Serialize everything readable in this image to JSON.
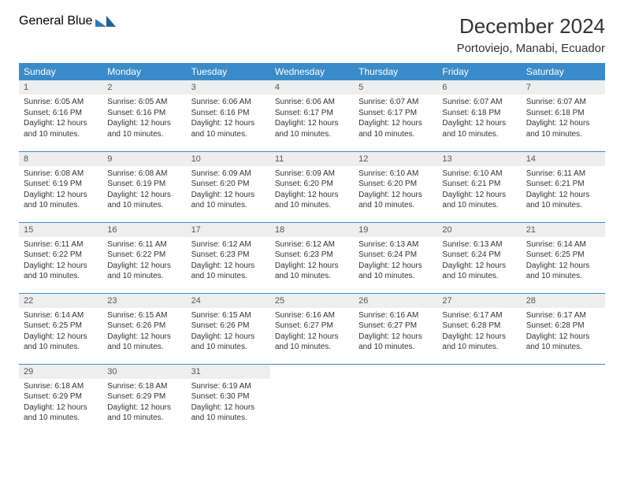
{
  "logo": {
    "line1": "General",
    "line2": "Blue"
  },
  "title": "December 2024",
  "location": "Portoviejo, Manabi, Ecuador",
  "colors": {
    "header_bg": "#3a8bc9",
    "header_fg": "#ffffff",
    "daynum_bg": "#eeeeee",
    "border": "#3a8bc9",
    "logo_gray": "#6c6c6c",
    "logo_blue": "#2b7bbf"
  },
  "weekdays": [
    "Sunday",
    "Monday",
    "Tuesday",
    "Wednesday",
    "Thursday",
    "Friday",
    "Saturday"
  ],
  "start_offset": 0,
  "days": [
    {
      "n": 1,
      "sunrise": "6:05 AM",
      "sunset": "6:16 PM",
      "daylight": "12 hours and 10 minutes."
    },
    {
      "n": 2,
      "sunrise": "6:05 AM",
      "sunset": "6:16 PM",
      "daylight": "12 hours and 10 minutes."
    },
    {
      "n": 3,
      "sunrise": "6:06 AM",
      "sunset": "6:16 PM",
      "daylight": "12 hours and 10 minutes."
    },
    {
      "n": 4,
      "sunrise": "6:06 AM",
      "sunset": "6:17 PM",
      "daylight": "12 hours and 10 minutes."
    },
    {
      "n": 5,
      "sunrise": "6:07 AM",
      "sunset": "6:17 PM",
      "daylight": "12 hours and 10 minutes."
    },
    {
      "n": 6,
      "sunrise": "6:07 AM",
      "sunset": "6:18 PM",
      "daylight": "12 hours and 10 minutes."
    },
    {
      "n": 7,
      "sunrise": "6:07 AM",
      "sunset": "6:18 PM",
      "daylight": "12 hours and 10 minutes."
    },
    {
      "n": 8,
      "sunrise": "6:08 AM",
      "sunset": "6:19 PM",
      "daylight": "12 hours and 10 minutes."
    },
    {
      "n": 9,
      "sunrise": "6:08 AM",
      "sunset": "6:19 PM",
      "daylight": "12 hours and 10 minutes."
    },
    {
      "n": 10,
      "sunrise": "6:09 AM",
      "sunset": "6:20 PM",
      "daylight": "12 hours and 10 minutes."
    },
    {
      "n": 11,
      "sunrise": "6:09 AM",
      "sunset": "6:20 PM",
      "daylight": "12 hours and 10 minutes."
    },
    {
      "n": 12,
      "sunrise": "6:10 AM",
      "sunset": "6:20 PM",
      "daylight": "12 hours and 10 minutes."
    },
    {
      "n": 13,
      "sunrise": "6:10 AM",
      "sunset": "6:21 PM",
      "daylight": "12 hours and 10 minutes."
    },
    {
      "n": 14,
      "sunrise": "6:11 AM",
      "sunset": "6:21 PM",
      "daylight": "12 hours and 10 minutes."
    },
    {
      "n": 15,
      "sunrise": "6:11 AM",
      "sunset": "6:22 PM",
      "daylight": "12 hours and 10 minutes."
    },
    {
      "n": 16,
      "sunrise": "6:11 AM",
      "sunset": "6:22 PM",
      "daylight": "12 hours and 10 minutes."
    },
    {
      "n": 17,
      "sunrise": "6:12 AM",
      "sunset": "6:23 PM",
      "daylight": "12 hours and 10 minutes."
    },
    {
      "n": 18,
      "sunrise": "6:12 AM",
      "sunset": "6:23 PM",
      "daylight": "12 hours and 10 minutes."
    },
    {
      "n": 19,
      "sunrise": "6:13 AM",
      "sunset": "6:24 PM",
      "daylight": "12 hours and 10 minutes."
    },
    {
      "n": 20,
      "sunrise": "6:13 AM",
      "sunset": "6:24 PM",
      "daylight": "12 hours and 10 minutes."
    },
    {
      "n": 21,
      "sunrise": "6:14 AM",
      "sunset": "6:25 PM",
      "daylight": "12 hours and 10 minutes."
    },
    {
      "n": 22,
      "sunrise": "6:14 AM",
      "sunset": "6:25 PM",
      "daylight": "12 hours and 10 minutes."
    },
    {
      "n": 23,
      "sunrise": "6:15 AM",
      "sunset": "6:26 PM",
      "daylight": "12 hours and 10 minutes."
    },
    {
      "n": 24,
      "sunrise": "6:15 AM",
      "sunset": "6:26 PM",
      "daylight": "12 hours and 10 minutes."
    },
    {
      "n": 25,
      "sunrise": "6:16 AM",
      "sunset": "6:27 PM",
      "daylight": "12 hours and 10 minutes."
    },
    {
      "n": 26,
      "sunrise": "6:16 AM",
      "sunset": "6:27 PM",
      "daylight": "12 hours and 10 minutes."
    },
    {
      "n": 27,
      "sunrise": "6:17 AM",
      "sunset": "6:28 PM",
      "daylight": "12 hours and 10 minutes."
    },
    {
      "n": 28,
      "sunrise": "6:17 AM",
      "sunset": "6:28 PM",
      "daylight": "12 hours and 10 minutes."
    },
    {
      "n": 29,
      "sunrise": "6:18 AM",
      "sunset": "6:29 PM",
      "daylight": "12 hours and 10 minutes."
    },
    {
      "n": 30,
      "sunrise": "6:18 AM",
      "sunset": "6:29 PM",
      "daylight": "12 hours and 10 minutes."
    },
    {
      "n": 31,
      "sunrise": "6:19 AM",
      "sunset": "6:30 PM",
      "daylight": "12 hours and 10 minutes."
    }
  ]
}
